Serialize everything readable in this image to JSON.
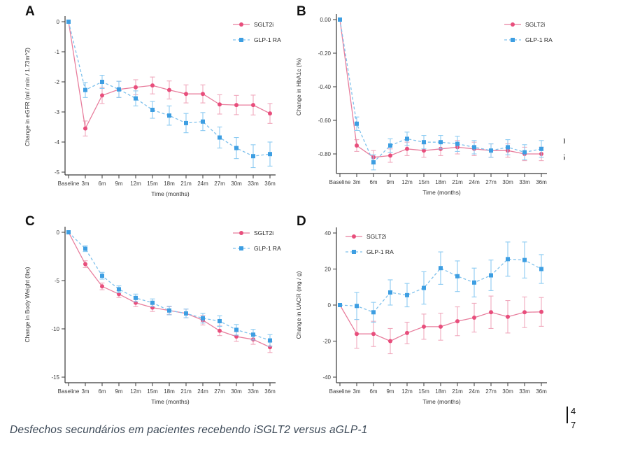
{
  "page": {
    "caption": "Desfechos secundários em pacientes recebendo iSGLT2 versus aGLP-1",
    "side_fragment_top": "0",
    "side_fragment_bottom": "6",
    "page_mark_top": "4",
    "page_mark_bottom": "7"
  },
  "colors": {
    "sglt2i_line": "#e87e9d",
    "sglt2i_marker": "#e84e7c",
    "sglt2i_error": "#f0a9bd",
    "glp1_line": "#7fc1ec",
    "glp1_marker": "#3d9ee2",
    "glp1_error": "#8ccbf2",
    "axis": "#3a3a3a"
  },
  "chart_data": [
    {
      "panel": "A",
      "type": "line",
      "title": "",
      "xlabel": "Time (months)",
      "ylabel": "Change in eGFR (ml / min / 1.73m^2)",
      "categories": [
        "Baseline",
        "3m",
        "6m",
        "9m",
        "12m",
        "15m",
        "18m",
        "21m",
        "24m",
        "27m",
        "30m",
        "33m",
        "36m"
      ],
      "yticks": [
        0,
        -1,
        -2,
        -3,
        -4,
        -5
      ],
      "ytick_labels": [
        "0",
        "-1",
        "-2",
        "-3",
        "-4",
        "-5"
      ],
      "ylim": [
        -5.2,
        0.2
      ],
      "grid": false,
      "legend_position": "top-right",
      "layout": {
        "tick_top": 21,
        "tick_spacing": 43,
        "axis_y": 240
      },
      "series": [
        {
          "name": "SGLT2i",
          "style": "solid",
          "marker": "circle",
          "line_color": "#e87e9d",
          "marker_color": "#e84e7c",
          "error_color": "#f0a9bd",
          "values": [
            0,
            -3.55,
            -2.45,
            -2.25,
            -2.18,
            -2.12,
            -2.27,
            -2.4,
            -2.4,
            -2.75,
            -2.77,
            -2.77,
            -3.05
          ],
          "errors": [
            0,
            0.25,
            0.27,
            0.27,
            0.25,
            0.28,
            0.3,
            0.3,
            0.3,
            0.32,
            0.32,
            0.33,
            0.33
          ]
        },
        {
          "name": "GLP-1 RA",
          "style": "dashed",
          "marker": "square",
          "line_color": "#7fc1ec",
          "marker_color": "#3d9ee2",
          "error_color": "#8ccbf2",
          "values": [
            0,
            -2.27,
            -2.0,
            -2.25,
            -2.55,
            -2.93,
            -3.12,
            -3.37,
            -3.32,
            -3.85,
            -4.2,
            -4.47,
            -4.4
          ],
          "errors": [
            0,
            0.25,
            0.22,
            0.27,
            0.25,
            0.28,
            0.32,
            0.32,
            0.3,
            0.35,
            0.35,
            0.38,
            0.4
          ]
        }
      ]
    },
    {
      "panel": "B",
      "type": "line",
      "title": "",
      "xlabel": "Time (months)",
      "ylabel": "Change in HbA1c (%)",
      "categories": [
        "Baseline",
        "3m",
        "6m",
        "9m",
        "12m",
        "15m",
        "18m",
        "21m",
        "24m",
        "27m",
        "30m",
        "33m",
        "36m"
      ],
      "yticks": [
        0,
        -0.2,
        -0.4,
        -0.6,
        -0.8
      ],
      "ytick_labels": [
        "0.00",
        "-0.20",
        "-0.40",
        "-0.60",
        "-0.80"
      ],
      "ylim": [
        -0.92,
        0.02
      ],
      "grid": false,
      "legend_position": "top-right",
      "layout": {
        "tick_top": 18,
        "tick_spacing": 48,
        "axis_y": 238
      },
      "series": [
        {
          "name": "SGLT2i",
          "style": "solid",
          "marker": "circle",
          "line_color": "#e87e9d",
          "marker_color": "#e84e7c",
          "error_color": "#f0a9bd",
          "values": [
            0,
            -0.75,
            -0.82,
            -0.81,
            -0.77,
            -0.78,
            -0.77,
            -0.76,
            -0.77,
            -0.78,
            -0.78,
            -0.8,
            -0.8
          ],
          "errors": [
            0,
            0.035,
            0.04,
            0.04,
            0.04,
            0.04,
            0.04,
            0.04,
            0.04,
            0.04,
            0.04,
            0.04,
            0.04
          ]
        },
        {
          "name": "GLP-1 RA",
          "style": "dashed",
          "marker": "square",
          "line_color": "#7fc1ec",
          "marker_color": "#3d9ee2",
          "error_color": "#8ccbf2",
          "values": [
            0,
            -0.62,
            -0.85,
            -0.75,
            -0.71,
            -0.73,
            -0.73,
            -0.74,
            -0.76,
            -0.78,
            -0.76,
            -0.79,
            -0.77
          ],
          "errors": [
            0,
            0.04,
            0.045,
            0.04,
            0.04,
            0.04,
            0.04,
            0.045,
            0.04,
            0.04,
            0.045,
            0.045,
            0.05
          ]
        }
      ]
    },
    {
      "panel": "C",
      "type": "line",
      "title": "",
      "xlabel": "Time (months)",
      "ylabel": "Change in Body Weight (lbs)",
      "categories": [
        "Baseline",
        "3m",
        "6m",
        "9m",
        "12m",
        "15m",
        "18m",
        "21m",
        "24m",
        "27m",
        "30m",
        "33m",
        "36m"
      ],
      "yticks": [
        0,
        -5,
        -10,
        -15
      ],
      "ytick_labels": [
        "0",
        "-5",
        "-10",
        "-15"
      ],
      "ylim": [
        -15.6,
        0.3
      ],
      "grid": false,
      "legend_position": "top-right",
      "layout": {
        "tick_top": 24,
        "tick_spacing": 69,
        "axis_y": 239
      },
      "series": [
        {
          "name": "SGLT2i",
          "style": "solid",
          "marker": "circle",
          "line_color": "#e87e9d",
          "marker_color": "#e84e7c",
          "error_color": "#f0a9bd",
          "values": [
            0,
            -3.3,
            -5.6,
            -6.4,
            -7.3,
            -7.8,
            -8.1,
            -8.4,
            -9.1,
            -10.2,
            -10.8,
            -11.1,
            -11.9
          ],
          "errors": [
            0,
            0.35,
            0.35,
            0.35,
            0.4,
            0.4,
            0.4,
            0.45,
            0.5,
            0.5,
            0.5,
            0.5,
            0.55
          ]
        },
        {
          "name": "GLP-1 RA",
          "style": "dashed",
          "marker": "square",
          "line_color": "#7fc1ec",
          "marker_color": "#3d9ee2",
          "error_color": "#8ccbf2",
          "values": [
            0,
            -1.7,
            -4.5,
            -5.9,
            -6.8,
            -7.3,
            -8.1,
            -8.4,
            -8.9,
            -9.2,
            -10.1,
            -10.6,
            -11.2
          ],
          "errors": [
            0,
            0.3,
            0.35,
            0.35,
            0.4,
            0.4,
            0.45,
            0.45,
            0.5,
            0.55,
            0.55,
            0.55,
            0.6
          ]
        }
      ]
    },
    {
      "panel": "D",
      "type": "line",
      "title": "",
      "xlabel": "Time (months)",
      "ylabel": "Change in UACR (mg / g)",
      "categories": [
        "Baseline",
        "3m",
        "6m",
        "9m",
        "12m",
        "15m",
        "18m",
        "21m",
        "24m",
        "27m",
        "30m",
        "33m",
        "36m"
      ],
      "yticks": [
        40,
        20,
        0,
        -20,
        -40
      ],
      "ytick_labels": [
        "40",
        "20",
        "0",
        "-20",
        "-40"
      ],
      "ylim": [
        -44,
        42
      ],
      "grid": false,
      "legend_position": "top-left",
      "layout": {
        "tick_top": 25,
        "tick_spacing": 51.5,
        "axis_y": 239
      },
      "series": [
        {
          "name": "SGLT2i",
          "style": "solid",
          "marker": "circle",
          "line_color": "#e87e9d",
          "marker_color": "#e84e7c",
          "error_color": "#f0a9bd",
          "values": [
            0,
            -16,
            -16,
            -20,
            -15.5,
            -12,
            -12,
            -9,
            -7,
            -4,
            -6.5,
            -4,
            -3.8
          ],
          "errors": [
            0,
            8,
            7,
            7,
            6,
            7,
            7.5,
            8,
            8,
            9,
            9,
            8.5,
            8
          ]
        },
        {
          "name": "GLP-1 RA",
          "style": "dashed",
          "marker": "square",
          "line_color": "#7fc1ec",
          "marker_color": "#3d9ee2",
          "error_color": "#8ccbf2",
          "values": [
            0,
            -0.5,
            -4,
            7,
            5.5,
            9.5,
            20.5,
            16,
            12.5,
            16.5,
            25.5,
            25,
            20
          ],
          "errors": [
            0,
            7.5,
            5.5,
            7,
            6.5,
            9,
            9,
            8.5,
            8,
            8.5,
            9.5,
            10,
            8
          ]
        }
      ]
    }
  ]
}
